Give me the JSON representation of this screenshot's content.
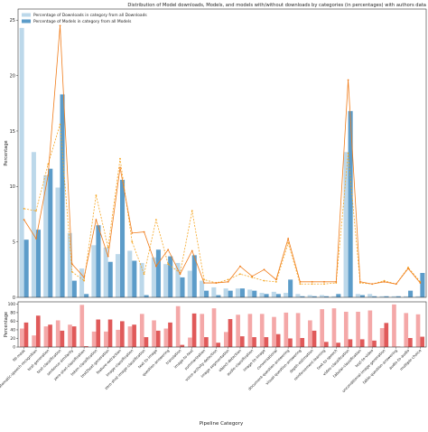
{
  "title": "Distribution of Model downloads, Models, and models with/without downloads by categories (in percentages) with authors data",
  "chart_data": [
    {
      "type": "bar",
      "title": "",
      "xlabel": "",
      "ylabel": "Percentage",
      "ylim": [
        0,
        26
      ],
      "yticks": [
        0,
        5,
        10,
        15,
        20,
        25
      ],
      "grid": false,
      "legend": "top-left",
      "categories": [
        "fill-mask",
        "automatic-speech-recognition",
        "text-generation",
        "text-classification",
        "sentence-similarity",
        "zero-shot-classification",
        "token-classification",
        "text2text-generation",
        "feature-extraction",
        "image-classification",
        "zero-shot-image-classification",
        "text-to-image",
        "question-answering",
        "translation",
        "image-to-text",
        "summarization",
        "voice-activity-detection",
        "image-segmentation",
        "object-detection",
        "audio-classification",
        "image-to-image",
        "conversational",
        "document-question-answering",
        "visual-question-answering",
        "depth-estimation",
        "reinforcement-learning",
        "text-to-speech",
        "video-classification",
        "tabular-classification",
        "text-to-video",
        "unconditional-image-generation",
        "table-question-answering",
        "audio-to-audio",
        "multiple-choice"
      ],
      "series": [
        {
          "name": "Percentage of Downloads in category from all Downloads",
          "color": "#bcd8ea",
          "values": [
            24.3,
            13.1,
            11.0,
            9.9,
            5.8,
            2.6,
            4.7,
            4.5,
            3.9,
            4.2,
            3.1,
            3.6,
            3.0,
            3.1,
            2.4,
            1.5,
            0.9,
            0.8,
            0.8,
            0.7,
            0.4,
            0.5,
            0.4,
            0.3,
            0.2,
            0.2,
            0.1,
            13.1,
            0.3,
            0.3,
            0.1,
            0.1,
            0.1,
            0.1
          ]
        },
        {
          "name": "Percentage of Models in category from all Models",
          "color": "#5c9cc9",
          "values": [
            5.2,
            6.1,
            11.6,
            18.3,
            1.5,
            0.3,
            6.5,
            3.2,
            10.6,
            3.3,
            0.2,
            4.3,
            3.7,
            1.8,
            3.8,
            0.6,
            0.2,
            0.6,
            0.8,
            0.6,
            0.3,
            0.3,
            1.6,
            0.1,
            0.1,
            0.1,
            0.3,
            16.8,
            0.2,
            0.1,
            0.1,
            0.1,
            0.6,
            2.2
          ]
        }
      ],
      "lines": [
        {
          "color": "#f5a623",
          "style": "dashed",
          "values": [
            8.0,
            7.8,
            12.0,
            15.6,
            2.3,
            1.5,
            9.2,
            4.5,
            12.5,
            5.0,
            2.1,
            7.0,
            3.0,
            2.2,
            7.8,
            1.6,
            1.3,
            1.6,
            2.1,
            1.8,
            1.5,
            1.4,
            4.9,
            1.2,
            1.2,
            1.2,
            1.3,
            13.0,
            1.3,
            1.2,
            1.5,
            1.2,
            2.7,
            1.4
          ]
        },
        {
          "color": "#f07c1a",
          "style": "solid",
          "values": [
            7.0,
            5.3,
            11.0,
            24.5,
            3.0,
            1.8,
            7.0,
            3.7,
            11.7,
            5.8,
            5.9,
            2.8,
            4.3,
            2.1,
            4.2,
            1.3,
            1.3,
            1.4,
            2.8,
            1.9,
            2.5,
            1.6,
            5.3,
            1.4,
            1.4,
            1.4,
            1.4,
            19.6,
            1.4,
            1.2,
            1.4,
            1.2,
            2.6,
            1.3
          ]
        }
      ]
    },
    {
      "type": "bar",
      "title": "",
      "xlabel": "Pipeline Category",
      "ylabel": "Percentage",
      "ylim": [
        0,
        105
      ],
      "yticks": [
        0,
        20,
        40,
        60,
        80,
        100
      ],
      "grid": false,
      "legend": "top-right",
      "series": [
        {
          "name": "",
          "color": "#f4a8a8",
          "values": [
            43,
            27,
            48,
            62,
            52,
            98,
            36,
            36,
            40,
            48,
            77,
            62,
            43,
            95,
            22,
            77,
            90,
            35,
            75,
            77,
            77,
            70,
            80,
            79,
            62,
            88,
            90,
            82,
            82,
            85,
            44,
            99,
            79,
            76
          ]
        },
        {
          "name": "",
          "color": "#e05a5a",
          "values": [
            57,
            73,
            52,
            38,
            48,
            2,
            64,
            64,
            60,
            52,
            23,
            38,
            57,
            5,
            78,
            23,
            10,
            65,
            25,
            23,
            23,
            30,
            20,
            21,
            38,
            12,
            10,
            18,
            18,
            15,
            56,
            1,
            21,
            24
          ]
        }
      ]
    }
  ]
}
